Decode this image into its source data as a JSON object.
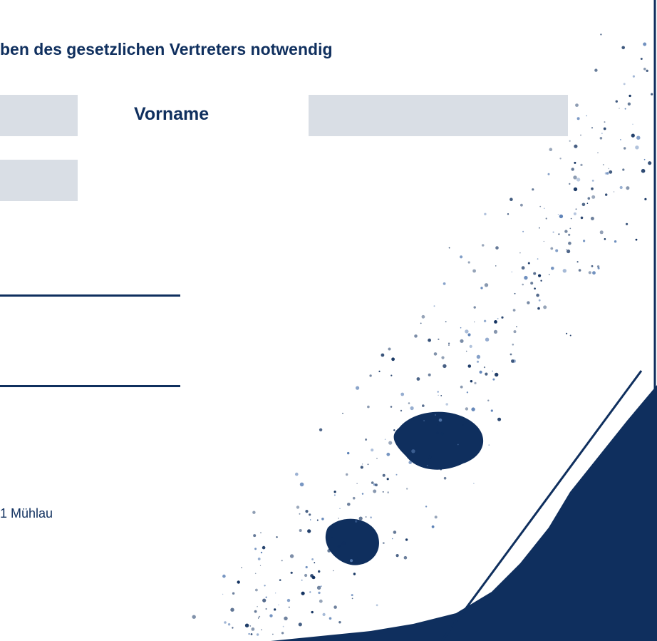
{
  "form": {
    "heading": "ben des gesetzlichen Vertreters notwendig",
    "first_name_label": "Vorname"
  },
  "footer": {
    "address": "1 Mühlau"
  }
}
